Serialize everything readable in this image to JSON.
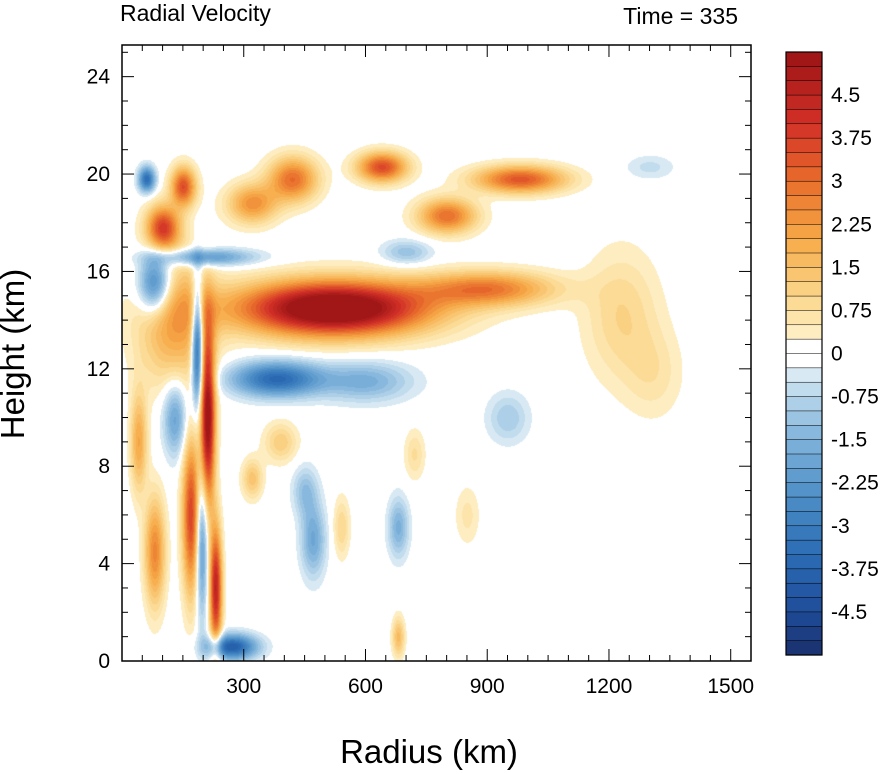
{
  "chart_data": {
    "type": "heatmap",
    "title": "Radial Velocity",
    "subtitle": "Time = 335",
    "xlabel": "Radius (km)",
    "ylabel": "Height (km)",
    "xlim": [
      0,
      1550
    ],
    "ylim": [
      0,
      25.3
    ],
    "xticks": [
      300,
      600,
      900,
      1200,
      1500
    ],
    "yticks": [
      0,
      4,
      8,
      12,
      16,
      20,
      24
    ],
    "colorbar": {
      "min": -5.25,
      "max": 5.25,
      "step": 0.25,
      "labels": [
        "4.5",
        "3.75",
        "3",
        "2.25",
        "1.5",
        "0.75",
        "0",
        "-0.75",
        "-1.5",
        "-2.25",
        "-3",
        "-3.75",
        "-4.5"
      ],
      "label_values": [
        4.5,
        3.75,
        3,
        2.25,
        1.5,
        0.75,
        0,
        -0.75,
        -1.5,
        -2.25,
        -3,
        -3.75,
        -4.5
      ],
      "colors": [
        "#1a2f6b",
        "#1f4c99",
        "#2b6cb5",
        "#4d8ec7",
        "#7fb2da",
        "#b6d5ea",
        "#e3f0f7",
        "#ffffff",
        "#fdf1cc",
        "#fbd68a",
        "#f6a947",
        "#e86d2b",
        "#d23027",
        "#9c1416"
      ],
      "color_stops": [
        -5.25,
        -4.5,
        -3.5,
        -2.5,
        -1.5,
        -0.75,
        -0.25,
        0,
        0.25,
        1.0,
        2.0,
        3.0,
        4.0,
        5.25
      ]
    },
    "features": [
      {
        "r": 520,
        "z": 14.5,
        "sr": 230,
        "sz": 1.1,
        "v": 6.5
      },
      {
        "r": 900,
        "z": 15.3,
        "sr": 160,
        "sz": 0.7,
        "v": 2.8
      },
      {
        "r": 1230,
        "z": 14.2,
        "sr": 90,
        "sz": 2.6,
        "v": 1.0
      },
      {
        "r": 1310,
        "z": 11.8,
        "sr": 70,
        "sz": 1.8,
        "v": 0.6
      },
      {
        "r": 980,
        "z": 19.8,
        "sr": 110,
        "sz": 0.55,
        "v": 3.4
      },
      {
        "r": 800,
        "z": 18.3,
        "sr": 70,
        "sz": 0.7,
        "v": 3.0
      },
      {
        "r": 640,
        "z": 20.3,
        "sr": 60,
        "sz": 0.6,
        "v": 3.6
      },
      {
        "r": 420,
        "z": 19.8,
        "sr": 60,
        "sz": 0.9,
        "v": 3.0
      },
      {
        "r": 320,
        "z": 18.8,
        "sr": 60,
        "sz": 0.8,
        "v": 2.4
      },
      {
        "r": 100,
        "z": 17.8,
        "sr": 40,
        "sz": 0.9,
        "v": 3.8
      },
      {
        "r": 150,
        "z": 19.5,
        "sr": 30,
        "sz": 0.8,
        "v": 3.5
      },
      {
        "r": 60,
        "z": 19.8,
        "sr": 20,
        "sz": 0.5,
        "v": -3.5
      },
      {
        "r": 130,
        "z": 14.0,
        "sr": 90,
        "sz": 2.6,
        "v": 2.2
      },
      {
        "r": 210,
        "z": 10.0,
        "sr": 18,
        "sz": 3.5,
        "v": 5.5
      },
      {
        "r": 170,
        "z": 6.0,
        "sr": 22,
        "sz": 3.2,
        "v": 3.8
      },
      {
        "r": 230,
        "z": 3.0,
        "sr": 15,
        "sz": 2.5,
        "v": 4.5
      },
      {
        "r": 80,
        "z": 4.5,
        "sr": 25,
        "sz": 2.2,
        "v": 2.6
      },
      {
        "r": 40,
        "z": 9.0,
        "sr": 20,
        "sz": 2.0,
        "v": 2.0
      },
      {
        "r": 380,
        "z": 11.6,
        "sr": 110,
        "sz": 0.7,
        "v": -3.6
      },
      {
        "r": 600,
        "z": 11.5,
        "sr": 110,
        "sz": 0.8,
        "v": -1.6
      },
      {
        "r": 200,
        "z": 16.6,
        "sr": 120,
        "sz": 0.35,
        "v": -2.4
      },
      {
        "r": 80,
        "z": 15.5,
        "sr": 40,
        "sz": 1.2,
        "v": -3.3
      },
      {
        "r": 185,
        "z": 13.0,
        "sr": 14,
        "sz": 2.5,
        "v": -4.5
      },
      {
        "r": 195,
        "z": 5.0,
        "sr": 15,
        "sz": 3.0,
        "v": -2.8
      },
      {
        "r": 130,
        "z": 10.0,
        "sr": 30,
        "sz": 1.5,
        "v": -2.0
      },
      {
        "r": 270,
        "z": 0.6,
        "sr": 60,
        "sz": 0.5,
        "v": -4.0
      },
      {
        "r": 470,
        "z": 5.0,
        "sr": 30,
        "sz": 1.5,
        "v": -1.8
      },
      {
        "r": 680,
        "z": 5.5,
        "sr": 25,
        "sz": 1.2,
        "v": -1.6
      },
      {
        "r": 950,
        "z": 10.0,
        "sr": 50,
        "sz": 1.0,
        "v": -1.0
      },
      {
        "r": 1300,
        "z": 20.3,
        "sr": 60,
        "sz": 0.5,
        "v": -0.6
      },
      {
        "r": 700,
        "z": 16.8,
        "sr": 60,
        "sz": 0.5,
        "v": -1.2
      },
      {
        "r": 320,
        "z": 7.5,
        "sr": 25,
        "sz": 0.8,
        "v": 1.4
      },
      {
        "r": 450,
        "z": 7.0,
        "sr": 30,
        "sz": 1.0,
        "v": -1.2
      },
      {
        "r": 540,
        "z": 5.5,
        "sr": 20,
        "sz": 1.2,
        "v": 1.0
      },
      {
        "r": 720,
        "z": 8.5,
        "sr": 25,
        "sz": 1.0,
        "v": 0.8
      },
      {
        "r": 850,
        "z": 6.0,
        "sr": 30,
        "sz": 1.2,
        "v": 0.6
      },
      {
        "r": 680,
        "z": 1.0,
        "sr": 15,
        "sz": 0.8,
        "v": 1.6
      },
      {
        "r": 390,
        "z": 9.0,
        "sr": 40,
        "sz": 0.8,
        "v": 1.2
      }
    ]
  }
}
